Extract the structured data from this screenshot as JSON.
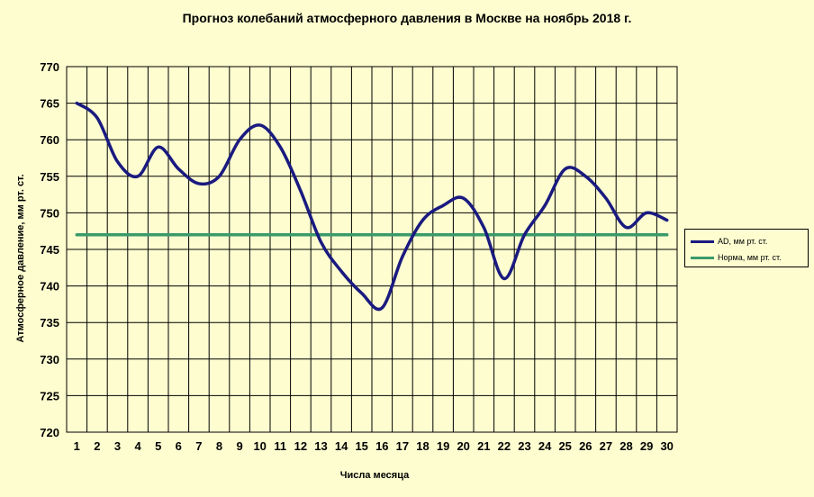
{
  "chart_data": {
    "type": "line",
    "title": "Прогноз колебаний атмосферного давления в Москве на ноябрь 2018 г.",
    "xlabel": "Числа месяца",
    "ylabel": "Атмосферное давление, мм рт. ст.",
    "x": [
      1,
      2,
      3,
      4,
      5,
      6,
      7,
      8,
      9,
      10,
      11,
      12,
      13,
      14,
      15,
      16,
      17,
      18,
      19,
      20,
      21,
      22,
      23,
      24,
      25,
      26,
      27,
      28,
      29,
      30
    ],
    "ylim": [
      720,
      770
    ],
    "yticks": [
      720,
      725,
      730,
      735,
      740,
      745,
      750,
      755,
      760,
      765,
      770
    ],
    "grid": true,
    "legend_position": "right",
    "series": [
      {
        "name": "AD, мм рт. ст.",
        "color": "#1a1a80",
        "values": [
          765,
          763,
          757,
          755,
          759,
          756,
          754,
          755,
          760,
          762,
          759,
          753,
          746,
          742,
          739,
          737,
          744,
          749,
          751,
          752,
          748,
          741,
          747,
          751,
          756,
          755,
          752,
          748,
          750,
          749
        ]
      },
      {
        "name": "Норма, мм рт. ст.",
        "color": "#3a9a6a",
        "values": [
          747,
          747,
          747,
          747,
          747,
          747,
          747,
          747,
          747,
          747,
          747,
          747,
          747,
          747,
          747,
          747,
          747,
          747,
          747,
          747,
          747,
          747,
          747,
          747,
          747,
          747,
          747,
          747,
          747,
          747
        ]
      }
    ]
  }
}
